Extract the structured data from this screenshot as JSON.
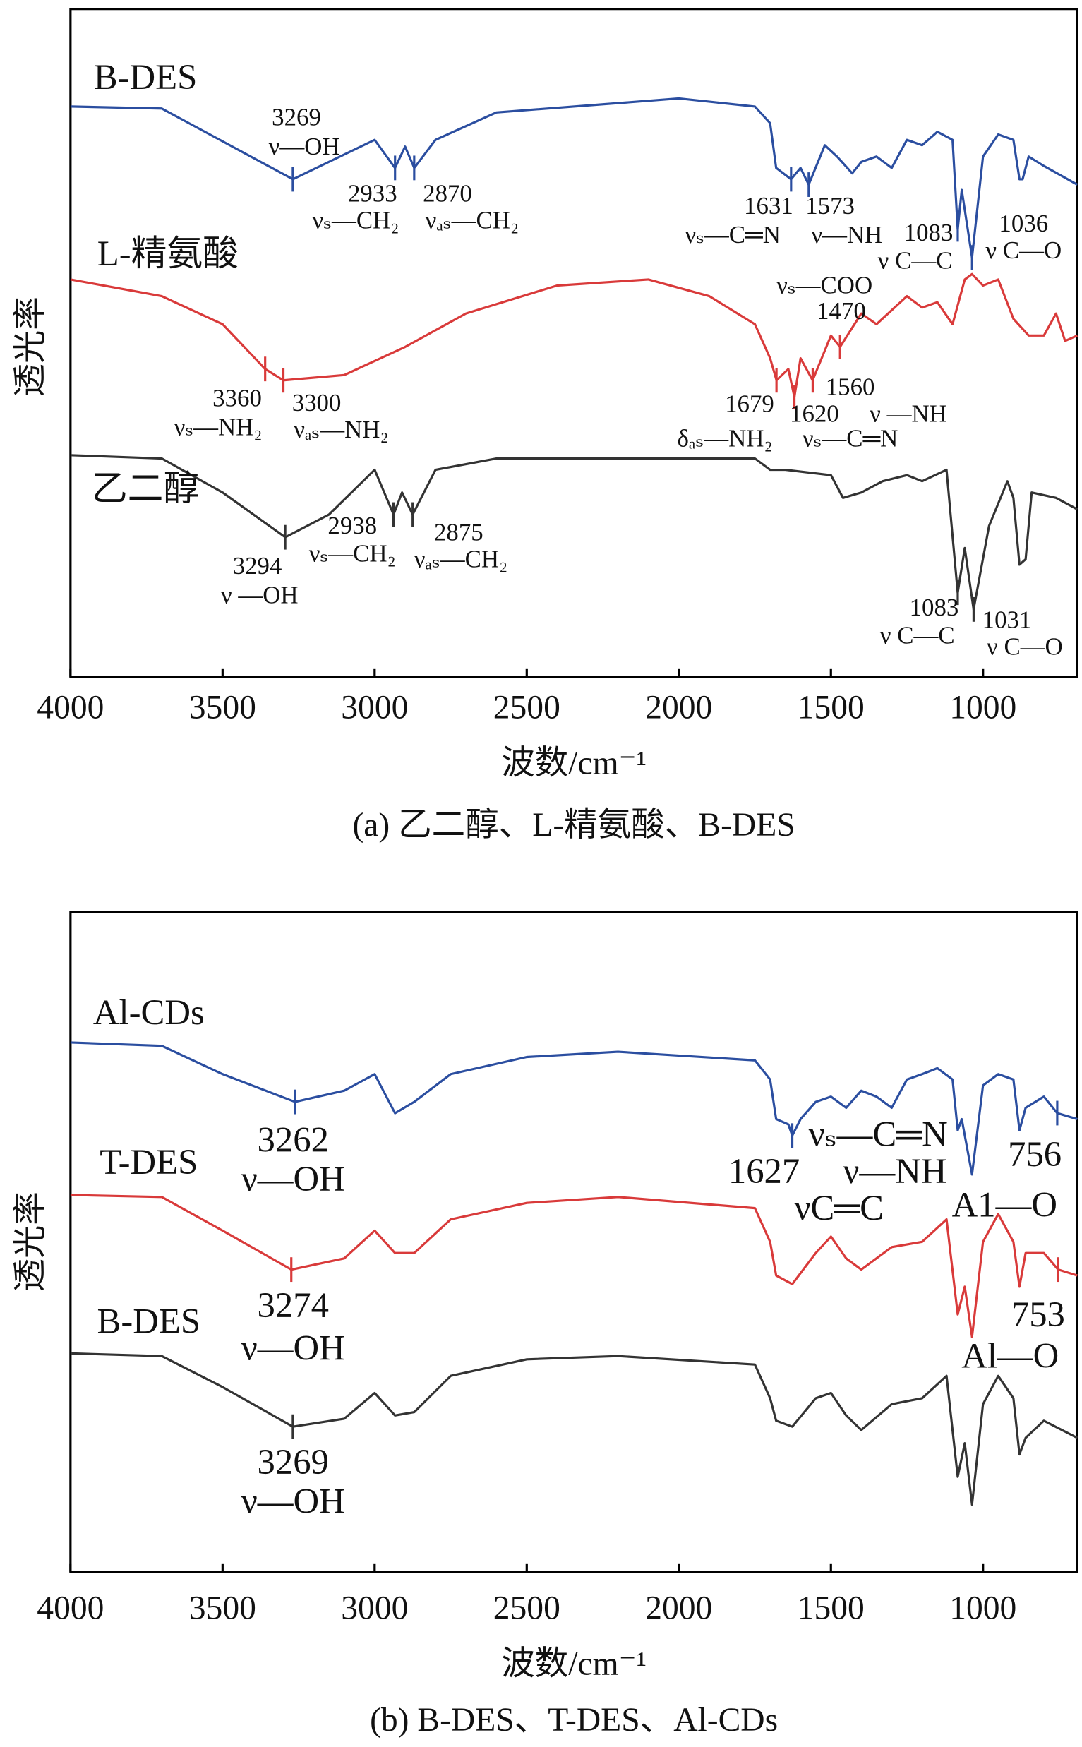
{
  "chart_data": [
    {
      "type": "line",
      "title": "(a) 乙二醇、L-精氨酸、B-DES",
      "xlabel": "波数/cm⁻¹",
      "ylabel": "透光率",
      "xlim": [
        4000,
        690
      ],
      "xticks": [
        4000,
        3500,
        3000,
        2500,
        2000,
        1500,
        1000
      ],
      "ylim": [
        0,
        100
      ],
      "series": [
        {
          "name": "B-DES",
          "color": "#2b4ea0",
          "x": [
            4000,
            3700,
            3269,
            3000,
            2933,
            2900,
            2870,
            2800,
            2600,
            2000,
            1750,
            1700,
            1680,
            1631,
            1600,
            1573,
            1520,
            1480,
            1430,
            1400,
            1350,
            1300,
            1250,
            1200,
            1150,
            1100,
            1083,
            1070,
            1036,
            1000,
            950,
            900,
            880,
            870,
            850,
            800,
            690
          ],
          "values": [
            85.4,
            85.1,
            74.5,
            80.4,
            76.2,
            79.4,
            76.2,
            80.4,
            84.5,
            86.6,
            85.4,
            82.9,
            76.2,
            74.5,
            76.2,
            73.7,
            79.6,
            77.9,
            75.4,
            77.1,
            77.9,
            76.2,
            80.4,
            79.6,
            81.6,
            80.4,
            67,
            72.9,
            62.8,
            77.9,
            81.2,
            80.4,
            74.5,
            74.5,
            77.9,
            76.5,
            73.7
          ],
          "annotations": [
            {
              "x": 3269,
              "lines": [
                "3269",
                "ν—OH"
              ]
            },
            {
              "x": 2933,
              "lines": [
                "2933",
                "νₛ—CH₂"
              ]
            },
            {
              "x": 2870,
              "lines": [
                "2870",
                "νₐₛ—CH₂"
              ]
            },
            {
              "x": 1631,
              "lines": [
                "1631",
                "νₛ—C═N"
              ]
            },
            {
              "x": 1573,
              "lines": [
                "1573",
                "ν—NH"
              ]
            },
            {
              "x": 1083,
              "lines": [
                "1083",
                "ν C—C"
              ]
            },
            {
              "x": 1036,
              "lines": [
                "1036",
                "ν C—O"
              ]
            }
          ]
        },
        {
          "name": "L-精氨酸",
          "color": "#d93a3a",
          "x": [
            4000,
            3700,
            3500,
            3360,
            3300,
            3100,
            2900,
            2700,
            2400,
            2100,
            1900,
            1750,
            1700,
            1679,
            1640,
            1620,
            1600,
            1560,
            1500,
            1470,
            1400,
            1350,
            1250,
            1200,
            1150,
            1100,
            1060,
            1036,
            1000,
            950,
            900,
            850,
            800,
            760,
            730,
            690
          ],
          "values": [
            59.5,
            57,
            52.8,
            46.1,
            44.4,
            45.2,
            49.4,
            54.4,
            58.6,
            59.5,
            57,
            52.8,
            47.7,
            44.4,
            46.1,
            41.9,
            47.7,
            44.4,
            51.1,
            49.4,
            54.4,
            52.8,
            57,
            55.3,
            56.1,
            52.8,
            59.5,
            60.3,
            58.6,
            59.5,
            53.6,
            51.1,
            51.1,
            54.4,
            50.3,
            51.1
          ],
          "annotations": [
            {
              "x": 3360,
              "lines": [
                "3360",
                "νₛ—NH₂"
              ]
            },
            {
              "x": 3300,
              "lines": [
                "3300",
                "νₐₛ—NH₂"
              ]
            },
            {
              "x": 1679,
              "lines": [
                "1679",
                "δₐₛ—NH₂"
              ]
            },
            {
              "x": 1620,
              "lines": [
                "1620",
                "νₛ—C═N"
              ]
            },
            {
              "x": 1560,
              "lines": [
                "1560",
                "ν —NH"
              ]
            },
            {
              "x": 1470,
              "lines": [
                "νₛ—COO",
                "1470"
              ]
            }
          ]
        },
        {
          "name": "乙二醇",
          "color": "#333333",
          "x": [
            4000,
            3700,
            3500,
            3294,
            3150,
            3000,
            2938,
            2910,
            2875,
            2800,
            2600,
            2000,
            1750,
            1700,
            1650,
            1500,
            1460,
            1400,
            1330,
            1250,
            1200,
            1120,
            1083,
            1060,
            1031,
            980,
            920,
            900,
            880,
            860,
            840,
            760,
            690
          ],
          "values": [
            33.2,
            32.7,
            27.6,
            20.9,
            24.3,
            31,
            24.3,
            27.6,
            24.3,
            31,
            32.7,
            32.7,
            32.7,
            31,
            31,
            30.2,
            26.8,
            27.6,
            29.3,
            30.2,
            29.3,
            31,
            12.6,
            19.3,
            10.1,
            22.6,
            29.3,
            26.8,
            16.8,
            17.6,
            27.6,
            26.8,
            25.1
          ],
          "annotations": [
            {
              "x": 3294,
              "lines": [
                "3294",
                "ν —OH"
              ]
            },
            {
              "x": 2938,
              "lines": [
                "2938",
                "νₛ—CH₂"
              ]
            },
            {
              "x": 2875,
              "lines": [
                "2875",
                "νₐₛ—CH₂"
              ]
            },
            {
              "x": 1083,
              "lines": [
                "1083",
                "ν C—C"
              ]
            },
            {
              "x": 1031,
              "lines": [
                "1031",
                "ν C—O"
              ]
            }
          ]
        }
      ]
    },
    {
      "type": "line",
      "title": "(b) B-DES、T-DES、Al-CDs",
      "xlabel": "波数/cm⁻¹",
      "ylabel": "透光率",
      "xlim": [
        4000,
        690
      ],
      "xticks": [
        4000,
        3500,
        3000,
        2500,
        2000,
        1500,
        1000
      ],
      "ylim": [
        0,
        100
      ],
      "series": [
        {
          "name": "Al-CDs",
          "color": "#2b4ea0",
          "x": [
            4000,
            3700,
            3500,
            3262,
            3100,
            3000,
            2933,
            2870,
            2750,
            2500,
            2200,
            1750,
            1700,
            1680,
            1640,
            1627,
            1600,
            1550,
            1500,
            1450,
            1400,
            1350,
            1300,
            1250,
            1200,
            1150,
            1100,
            1083,
            1070,
            1036,
            1000,
            950,
            900,
            880,
            860,
            800,
            756,
            690
          ],
          "values": [
            80.2,
            79.7,
            75.4,
            71.2,
            72.9,
            75.4,
            69.5,
            71.2,
            75.4,
            78,
            78.8,
            77.5,
            74.6,
            68.6,
            67.8,
            66.1,
            68.6,
            71.2,
            72,
            70.3,
            72.9,
            72,
            70.3,
            74.6,
            75.4,
            76.3,
            74.6,
            66.9,
            68.6,
            60.2,
            73.7,
            75.4,
            74.6,
            66.9,
            70.3,
            72,
            69.5,
            68.6
          ],
          "annotations": [
            {
              "x": 3262,
              "lines": [
                "3262",
                "ν—OH"
              ]
            },
            {
              "x": 1627,
              "lines": [
                "1627"
              ]
            },
            {
              "lines": [
                "νₛ—C═N",
                "ν—NH",
                "νC═C"
              ]
            },
            {
              "x": 756,
              "lines": [
                "756",
                "A1—O"
              ]
            }
          ]
        },
        {
          "name": "T-DES",
          "color": "#d93a3a",
          "x": [
            4000,
            3700,
            3500,
            3274,
            3100,
            3000,
            2933,
            2870,
            2750,
            2500,
            2200,
            1750,
            1700,
            1680,
            1627,
            1550,
            1500,
            1450,
            1400,
            1300,
            1200,
            1120,
            1083,
            1060,
            1036,
            1000,
            950,
            900,
            880,
            860,
            800,
            753,
            690
          ],
          "values": [
            57.1,
            56.8,
            51.7,
            45.8,
            47.5,
            51.7,
            48.3,
            48.3,
            53.4,
            55.9,
            56.8,
            55.1,
            50,
            44.9,
            43.6,
            48.3,
            50.8,
            47.5,
            45.8,
            49.2,
            50,
            53.4,
            39,
            43.2,
            35.6,
            50,
            54.2,
            50,
            43.2,
            48.3,
            48.3,
            45.8,
            44.9
          ],
          "annotations": [
            {
              "x": 3274,
              "lines": [
                "3274",
                "ν—OH"
              ]
            },
            {
              "x": 753,
              "lines": [
                "753",
                "Al—O"
              ]
            }
          ]
        },
        {
          "name": "B-DES",
          "color": "#333333",
          "x": [
            4000,
            3700,
            3500,
            3269,
            3100,
            3000,
            2933,
            2870,
            2750,
            2500,
            2200,
            1750,
            1700,
            1680,
            1627,
            1550,
            1500,
            1450,
            1400,
            1300,
            1200,
            1120,
            1083,
            1060,
            1036,
            1000,
            950,
            900,
            880,
            860,
            800,
            690
          ],
          "values": [
            33.1,
            32.7,
            28,
            22,
            23.2,
            27.1,
            23.7,
            24.2,
            29.7,
            32.2,
            32.7,
            31.4,
            26.3,
            22.9,
            22,
            26.3,
            27.1,
            23.7,
            21.5,
            25.4,
            26.3,
            29.7,
            14.4,
            19.5,
            10.2,
            25.4,
            29.7,
            26.3,
            17.8,
            20.3,
            22.9,
            20.3
          ],
          "annotations": [
            {
              "x": 3269,
              "lines": [
                "3269",
                "ν—OH"
              ]
            }
          ]
        }
      ]
    }
  ]
}
